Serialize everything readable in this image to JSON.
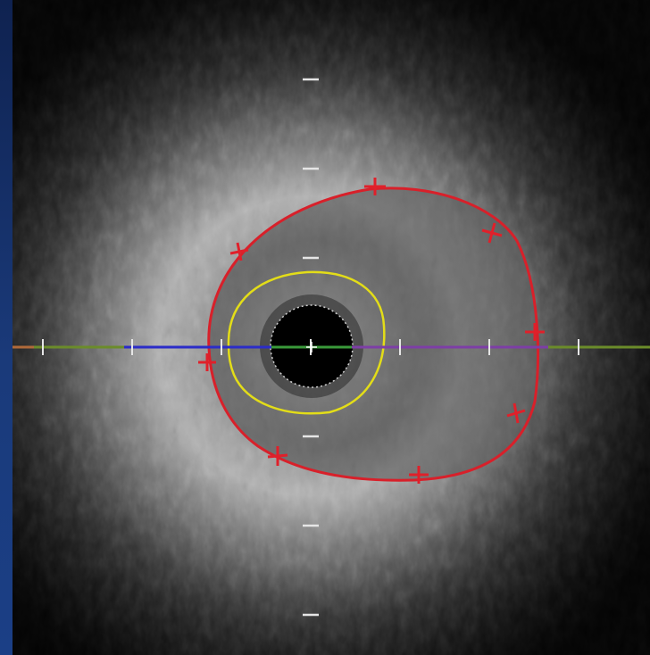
{
  "image": {
    "subject": "intravascular-ultrasound-cross-section",
    "overlays": {
      "outer_border_color": "#d8202a",
      "inner_border_color": "#e3dd18",
      "axis_left_color": "#2b2cc8",
      "axis_right_color": "#7d3ea6",
      "axis_outer_color": "#6b8c2a",
      "axis_center_color": "#3a9a3a",
      "catheter_color": "#000000"
    }
  }
}
